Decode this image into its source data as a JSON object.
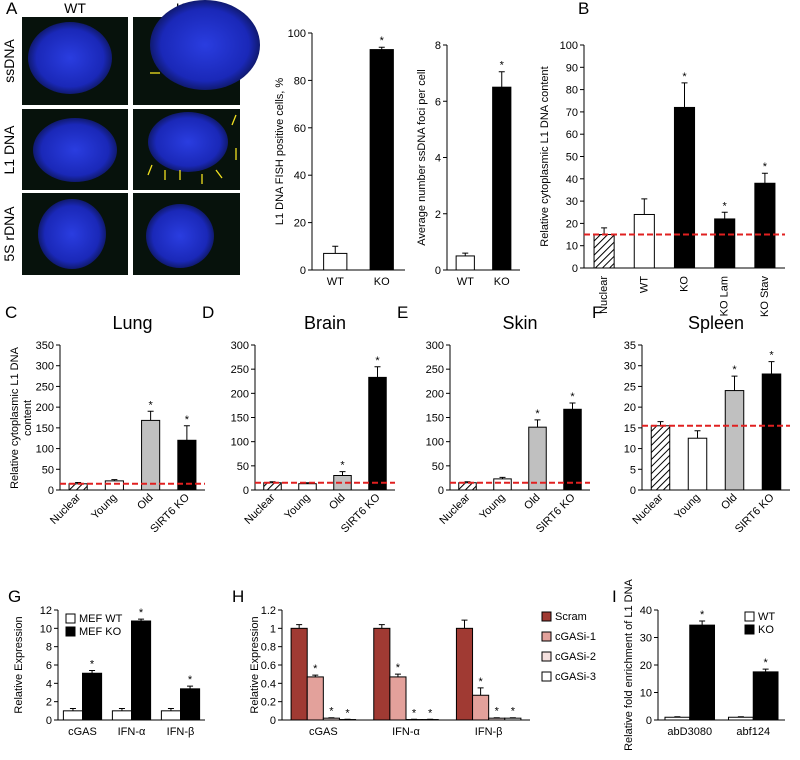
{
  "micrographs": {
    "panel": "A",
    "columns": [
      "WT",
      "KO"
    ],
    "rows": [
      "ssDNA",
      "L1 DNA",
      "5S rDNA"
    ]
  },
  "chart_data": [
    {
      "type": "bar",
      "ylabel": "L1 DNA FISH positive cells, %",
      "categories": [
        "WT",
        "KO"
      ],
      "series": [
        {
          "colors": [
            "#ffffff",
            "#000000"
          ],
          "values": [
            7,
            93
          ],
          "errors": [
            3,
            1
          ],
          "sig": [
            null,
            "*"
          ]
        }
      ],
      "ylim": [
        0,
        100
      ],
      "yticks": [
        0,
        20,
        40,
        60,
        80,
        100
      ]
    },
    {
      "type": "bar",
      "ylabel": "Average number ssDNA foci per cell",
      "categories": [
        "WT",
        "KO"
      ],
      "series": [
        {
          "colors": [
            "#ffffff",
            "#000000"
          ],
          "values": [
            0.5,
            6.5
          ],
          "errors": [
            0.1,
            0.55
          ],
          "sig": [
            null,
            "*"
          ]
        }
      ],
      "ylim": [
        0,
        8
      ],
      "yticks": [
        0,
        2,
        4,
        6,
        8
      ]
    },
    {
      "type": "bar",
      "panel": "B",
      "ylabel": "Relative cytoplasmic L1 DNA content",
      "categories": [
        "Nuclear",
        "WT",
        "KO",
        "KO Lam",
        "KO Stav"
      ],
      "series": [
        {
          "colors": [
            "#ffffff",
            "#ffffff",
            "#000000",
            "#000000",
            "#000000"
          ],
          "hatched": [
            true,
            false,
            false,
            false,
            false
          ],
          "values": [
            15,
            24,
            72,
            22,
            38
          ],
          "errors": [
            3,
            7,
            11,
            3,
            4.5
          ],
          "sig": [
            null,
            null,
            "*",
            "*",
            "*"
          ],
          "sig_colors": [
            null,
            null,
            "#000000",
            "#e02020",
            "#e02020"
          ]
        }
      ],
      "ylim": [
        0,
        100
      ],
      "yticks": [
        0,
        10,
        20,
        30,
        40,
        50,
        60,
        70,
        80,
        90,
        100
      ],
      "reference_line": 15,
      "reference_color": "#e02020",
      "xlabel_rotation": -90
    },
    {
      "type": "bar",
      "panel": "C",
      "title": "Lung",
      "ylabel": "Relative cytoplasmic L1 DNA content",
      "categories": [
        "Nuclear",
        "Young",
        "Old",
        "SIRT6 KO"
      ],
      "series": [
        {
          "colors": [
            "#ffffff",
            "#ffffff",
            "#c0c0c0",
            "#000000"
          ],
          "hatched": [
            true,
            false,
            false,
            false
          ],
          "values": [
            15,
            22,
            168,
            120
          ],
          "errors": [
            3,
            3,
            22,
            35
          ],
          "sig": [
            null,
            null,
            "*",
            "*"
          ]
        }
      ],
      "ylim": [
        0,
        350
      ],
      "yticks": [
        0,
        50,
        100,
        150,
        200,
        250,
        300,
        350
      ],
      "reference_line": 15,
      "reference_color": "#e02020",
      "xlabel_rotation": -45
    },
    {
      "type": "bar",
      "panel": "D",
      "title": "Brain",
      "categories": [
        "Nuclear",
        "Young",
        "Old",
        "SIRT6 KO"
      ],
      "series": [
        {
          "colors": [
            "#ffffff",
            "#ffffff",
            "#c0c0c0",
            "#000000"
          ],
          "hatched": [
            true,
            false,
            false,
            false
          ],
          "values": [
            15,
            13,
            30,
            233
          ],
          "errors": [
            2,
            2,
            8,
            22
          ],
          "sig": [
            null,
            null,
            "*",
            "*"
          ]
        }
      ],
      "ylim": [
        0,
        300
      ],
      "yticks": [
        0,
        50,
        100,
        150,
        200,
        250,
        300
      ],
      "reference_line": 15,
      "reference_color": "#e02020",
      "xlabel_rotation": -45
    },
    {
      "type": "bar",
      "panel": "E",
      "title": "Skin",
      "categories": [
        "Nuclear",
        "Young",
        "Old",
        "SIRT6 KO"
      ],
      "series": [
        {
          "colors": [
            "#ffffff",
            "#ffffff",
            "#c0c0c0",
            "#000000"
          ],
          "hatched": [
            true,
            false,
            false,
            false
          ],
          "values": [
            15,
            23,
            130,
            167
          ],
          "errors": [
            2,
            3,
            15,
            13
          ],
          "sig": [
            null,
            null,
            "*",
            "*"
          ]
        }
      ],
      "ylim": [
        0,
        300
      ],
      "yticks": [
        0,
        50,
        100,
        150,
        200,
        250,
        300
      ],
      "reference_line": 15,
      "reference_color": "#e02020",
      "xlabel_rotation": -45
    },
    {
      "type": "bar",
      "panel": "F",
      "title": "Spleen",
      "categories": [
        "Nuclear",
        "Young",
        "Old",
        "SIRT6 KO"
      ],
      "series": [
        {
          "colors": [
            "#ffffff",
            "#ffffff",
            "#c0c0c0",
            "#000000"
          ],
          "hatched": [
            true,
            false,
            false,
            false
          ],
          "values": [
            15.5,
            12.5,
            24,
            28
          ],
          "errors": [
            1,
            1.8,
            3.5,
            3
          ],
          "sig": [
            null,
            null,
            "*",
            "*"
          ]
        }
      ],
      "ylim": [
        0,
        35
      ],
      "yticks": [
        0,
        5,
        10,
        15,
        20,
        25,
        30,
        35
      ],
      "reference_line": 15.5,
      "reference_color": "#e02020",
      "xlabel_rotation": -45
    },
    {
      "type": "bar",
      "panel": "G",
      "ylabel": "Relative Expression",
      "categories": [
        "cGAS",
        "IFN-α",
        "IFN-β"
      ],
      "series": [
        {
          "name": "MEF WT",
          "color": "#ffffff",
          "values": [
            1,
            1,
            1
          ],
          "errors": [
            0.25,
            0.25,
            0.25
          ]
        },
        {
          "name": "MEF KO",
          "color": "#000000",
          "values": [
            5.1,
            10.8,
            3.4
          ],
          "errors": [
            0.3,
            0.2,
            0.3
          ],
          "sig": [
            "*",
            "*",
            "*"
          ]
        }
      ],
      "ylim": [
        0,
        12
      ],
      "yticks": [
        0,
        2,
        4,
        6,
        8,
        10,
        12
      ],
      "legend": "upper left"
    },
    {
      "type": "bar",
      "panel": "H",
      "ylabel": "Relative Expression",
      "categories": [
        "cGAS",
        "IFN-α",
        "IFN-β"
      ],
      "series": [
        {
          "name": "Scram",
          "color": "#a03a33",
          "values": [
            1,
            1,
            1
          ],
          "errors": [
            0.04,
            0.04,
            0.09
          ]
        },
        {
          "name": "cGASi-1",
          "color": "#e3a19b",
          "values": [
            0.47,
            0.47,
            0.27
          ],
          "errors": [
            0.02,
            0.03,
            0.08
          ],
          "sig": [
            "*",
            "*",
            "*"
          ]
        },
        {
          "name": "cGASi-2",
          "color": "#f4e0de",
          "values": [
            0.02,
            0.005,
            0.02
          ],
          "errors": [
            0.005,
            0.003,
            0.005
          ],
          "sig": [
            "*",
            "*",
            "*"
          ]
        },
        {
          "name": "cGASi-3",
          "color": "#ffffff",
          "values": [
            0.005,
            0.005,
            0.02
          ],
          "errors": [
            0.003,
            0.003,
            0.005
          ],
          "sig": [
            "*",
            "*",
            "*"
          ]
        }
      ],
      "ylim": [
        0,
        1.2
      ],
      "yticks": [
        0,
        0.2,
        0.4,
        0.6,
        0.8,
        1,
        1.2
      ],
      "legend": "right"
    },
    {
      "type": "bar",
      "panel": "I",
      "ylabel": "Relative fold enrichment of L1 DNA",
      "categories": [
        "abD3080",
        "abf124"
      ],
      "series": [
        {
          "name": "WT",
          "color": "#ffffff",
          "values": [
            1,
            1
          ],
          "errors": [
            0.2,
            0.2
          ]
        },
        {
          "name": "KO",
          "color": "#000000",
          "values": [
            34.5,
            17.5
          ],
          "errors": [
            1.5,
            1
          ],
          "sig": [
            "*",
            "*"
          ]
        }
      ],
      "ylim": [
        0,
        40
      ],
      "yticks": [
        0,
        10,
        20,
        30,
        40
      ],
      "legend": "upper right"
    }
  ]
}
